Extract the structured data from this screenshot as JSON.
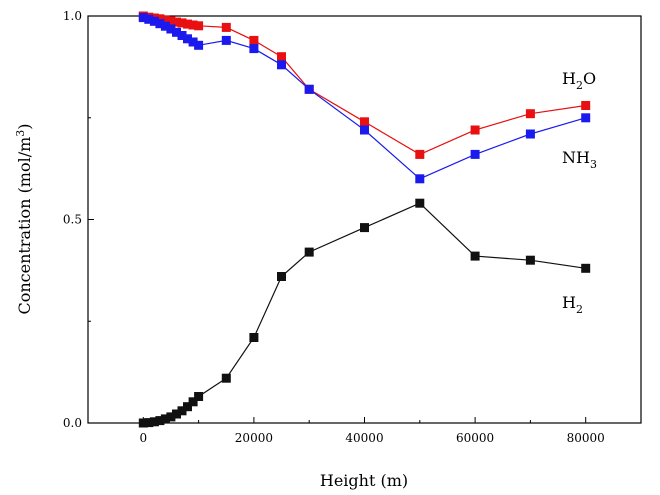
{
  "chart_data": {
    "type": "line",
    "title": "",
    "xlabel": "Height (m)",
    "ylabel_parts": [
      "Concentration (mol/m",
      "3",
      ")"
    ],
    "xlim": [
      -10000,
      90000
    ],
    "ylim": [
      0.0,
      1.0
    ],
    "x_ticks": [
      0,
      20000,
      40000,
      60000,
      80000
    ],
    "x_tick_labels": [
      "0",
      "20000",
      "40000",
      "60000",
      "80000"
    ],
    "y_ticks": [
      0.0,
      0.5,
      1.0
    ],
    "y_tick_labels": [
      "0.0",
      "0.5",
      "1.0"
    ],
    "grid": false,
    "marker": "square",
    "series": [
      {
        "key": "h2o",
        "label_parts": [
          "H",
          "2",
          "O"
        ],
        "color": "#e81010",
        "x": [
          0,
          1000,
          2000,
          3000,
          4000,
          5000,
          6000,
          7000,
          8000,
          9000,
          10000,
          15000,
          20000,
          25000,
          30000,
          40000,
          50000,
          60000,
          70000,
          80000
        ],
        "y": [
          1.0,
          0.997,
          0.995,
          0.993,
          0.99,
          0.988,
          0.985,
          0.983,
          0.98,
          0.978,
          0.976,
          0.972,
          0.94,
          0.9,
          0.82,
          0.74,
          0.66,
          0.72,
          0.76,
          0.78
        ]
      },
      {
        "key": "nh3",
        "label_parts": [
          "NH",
          "3",
          ""
        ],
        "color": "#1a1aee",
        "x": [
          0,
          1000,
          2000,
          3000,
          4000,
          5000,
          6000,
          7000,
          8000,
          9000,
          10000,
          15000,
          20000,
          25000,
          30000,
          40000,
          50000,
          60000,
          70000,
          80000
        ],
        "y": [
          0.996,
          0.992,
          0.987,
          0.981,
          0.975,
          0.968,
          0.96,
          0.952,
          0.944,
          0.936,
          0.928,
          0.94,
          0.92,
          0.88,
          0.82,
          0.72,
          0.6,
          0.66,
          0.71,
          0.75
        ]
      },
      {
        "key": "h2",
        "label_parts": [
          "H",
          "2",
          ""
        ],
        "color": "#111111",
        "x": [
          0,
          1000,
          2000,
          3000,
          4000,
          5000,
          6000,
          7000,
          8000,
          9000,
          10000,
          15000,
          20000,
          25000,
          30000,
          40000,
          50000,
          60000,
          70000,
          80000
        ],
        "y": [
          0.0,
          0.001,
          0.003,
          0.006,
          0.01,
          0.015,
          0.022,
          0.03,
          0.04,
          0.052,
          0.065,
          0.11,
          0.21,
          0.36,
          0.42,
          0.48,
          0.54,
          0.41,
          0.4,
          0.38
        ]
      }
    ]
  }
}
